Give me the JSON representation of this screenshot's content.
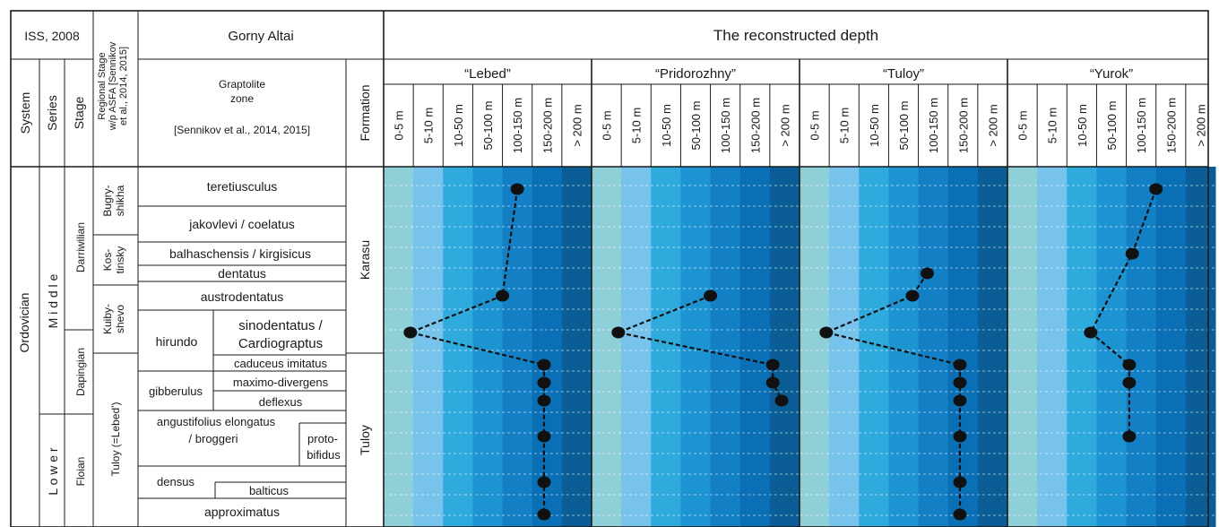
{
  "header": {
    "iss": "ISS, 2008",
    "regional_stage": [
      "Regional Stage",
      "w/p ASFA [Sennikov",
      "et al., 2014, 2015]"
    ],
    "region": "Gorny Altai",
    "depth_title": "The reconstructed depth",
    "system": "System",
    "series": "Series",
    "stage": "Stage",
    "graptolite": [
      "Graptolite",
      "zone"
    ],
    "graptolite_ref": "[Sennikov et al., 2014, 2015]",
    "formation": "Formation"
  },
  "systems": [
    {
      "label": "Ordovician"
    }
  ],
  "series": [
    {
      "label": "M i d d l e"
    },
    {
      "label": "L o w e r"
    }
  ],
  "stages": [
    {
      "label": "Darriwilian"
    },
    {
      "label": "Dapingian"
    },
    {
      "label": "Floian"
    }
  ],
  "regional_stages": [
    {
      "lines": [
        "Bugry-",
        "shikha"
      ]
    },
    {
      "lines": [
        "Kos-",
        "tinsky"
      ]
    },
    {
      "lines": [
        "Kuiby-",
        "shevo"
      ]
    },
    {
      "lines": [
        "Tuloy (=Lebed')"
      ]
    }
  ],
  "zones": [
    {
      "lines": [
        "teretiusculus"
      ]
    },
    {
      "lines": [
        "jakovlevi / coelatus"
      ]
    },
    {
      "lines": [
        "balhaschensis / kirgisicus"
      ]
    },
    {
      "lines": [
        "dentatus"
      ]
    },
    {
      "lines": [
        "austrodentatus"
      ]
    },
    {
      "lines": [
        "hirundo"
      ]
    },
    {
      "lines": [
        "sinodentatus /",
        "Cardiograptus"
      ]
    },
    {
      "lines": [
        "caduceus imitatus"
      ]
    },
    {
      "lines": [
        "gibberulus"
      ]
    },
    {
      "lines": [
        "maximo-divergens"
      ]
    },
    {
      "lines": [
        "deflexus"
      ]
    },
    {
      "lines": [
        "angustifolius elongatus",
        "/ broggeri"
      ]
    },
    {
      "lines": [
        "proto-",
        "bifidus"
      ]
    },
    {
      "lines": [
        "densus"
      ]
    },
    {
      "lines": [
        "balticus"
      ]
    },
    {
      "lines": [
        "approximatus"
      ]
    }
  ],
  "formations": [
    {
      "label": "Karasu"
    },
    {
      "label": "Tuloy"
    }
  ],
  "depth_classes": [
    "0-5 m",
    "5-10 m",
    "10-50 m",
    "50-100 m",
    "100-150 m",
    "150-200 m",
    "> 200 m"
  ],
  "depth_colors": [
    "#8fcfd8",
    "#77c3ec",
    "#2eaadd",
    "#1e93d2",
    "#1380c6",
    "#0b6fb6",
    "#0a5d95"
  ],
  "chart_data": {
    "type": "line",
    "title": "The reconstructed depth",
    "y_categories": [
      "teretiusculus",
      "jakovlevi / coelatus",
      "balhaschensis / kirgisicus",
      "dentatus",
      "austrodentatus",
      "sinodentatus / Cardiograptus",
      "caduceus imitatus",
      "maximo-divergens",
      "deflexus",
      "angustifolius elongatus / broggeri",
      "densus / balticus",
      "approximatus"
    ],
    "x_categories": [
      "0-5 m",
      "5-10 m",
      "10-50 m",
      "50-100 m",
      "100-150 m",
      "150-200 m",
      "> 200 m"
    ],
    "grid": true,
    "series": [
      {
        "name": "“Lebed”",
        "points": [
          {
            "zone": "teretiusculus",
            "depth": 4.5
          },
          {
            "zone": "austrodentatus",
            "depth": 4.0
          },
          {
            "zone": "sinodentatus / Cardiograptus",
            "depth": 0.9
          },
          {
            "zone": "caduceus imitatus",
            "depth": 5.4
          },
          {
            "zone": "maximo-divergens",
            "depth": 5.4
          },
          {
            "zone": "deflexus",
            "depth": 5.4
          },
          {
            "zone": "angustifolius elongatus / broggeri",
            "depth": 5.4
          },
          {
            "zone": "densus / balticus",
            "depth": 5.4
          },
          {
            "zone": "approximatus",
            "depth": 5.4
          }
        ]
      },
      {
        "name": "“Pridorozhny”",
        "points": [
          {
            "zone": "austrodentatus",
            "depth": 4.0
          },
          {
            "zone": "sinodentatus / Cardiograptus",
            "depth": 0.9
          },
          {
            "zone": "caduceus imitatus",
            "depth": 6.1
          },
          {
            "zone": "maximo-divergens",
            "depth": 6.1
          },
          {
            "zone": "deflexus",
            "depth": 6.4
          }
        ]
      },
      {
        "name": "“Tuloy”",
        "points": [
          {
            "zone": "dentatus",
            "depth": 4.3
          },
          {
            "zone": "austrodentatus",
            "depth": 3.8
          },
          {
            "zone": "sinodentatus / Cardiograptus",
            "depth": 0.9
          },
          {
            "zone": "caduceus imitatus",
            "depth": 5.4
          },
          {
            "zone": "maximo-divergens",
            "depth": 5.4
          },
          {
            "zone": "deflexus",
            "depth": 5.4
          },
          {
            "zone": "angustifolius elongatus / broggeri",
            "depth": 5.4
          },
          {
            "zone": "densus / balticus",
            "depth": 5.4
          },
          {
            "zone": "approximatus",
            "depth": 5.4
          }
        ]
      },
      {
        "name": "“Yurok”",
        "points": [
          {
            "zone": "teretiusculus",
            "depth": 5.0
          },
          {
            "zone": "balhaschensis / kirgisicus",
            "depth": 4.2
          },
          {
            "zone": "sinodentatus / Cardiograptus",
            "depth": 2.8
          },
          {
            "zone": "caduceus imitatus",
            "depth": 4.1
          },
          {
            "zone": "maximo-divergens",
            "depth": 4.1
          },
          {
            "zone": "angustifolius elongatus / broggeri",
            "depth": 4.1
          }
        ]
      }
    ]
  }
}
